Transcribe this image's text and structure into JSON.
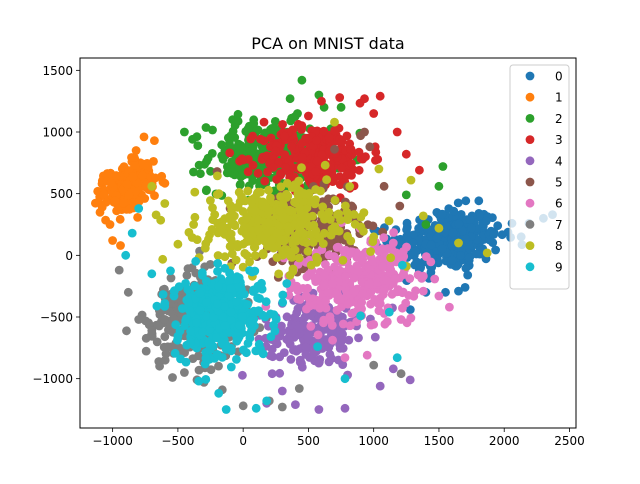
{
  "chart_data": {
    "type": "scatter",
    "title": "PCA on MNIST data",
    "xlabel": "",
    "ylabel": "",
    "xlim": [
      -1250,
      2550
    ],
    "ylim": [
      -1400,
      1600
    ],
    "xticks": [
      -1000,
      -500,
      0,
      500,
      1000,
      1500,
      2000,
      2500
    ],
    "yticks": [
      -1000,
      -500,
      0,
      500,
      1000,
      1500
    ],
    "xtick_labels": [
      "−1000",
      "−500",
      "0",
      "500",
      "1000",
      "1500",
      "2000",
      "2500"
    ],
    "ytick_labels": [
      "−1000",
      "−500",
      "0",
      "500",
      "1000",
      "1500"
    ],
    "grid": false,
    "legend_position": "top-right",
    "series": [
      {
        "name": "0",
        "color": "#1f77b4",
        "center": [
          1550,
          120
        ],
        "spread": [
          380,
          230
        ],
        "n": 320,
        "rotation": 0.1,
        "points": [
          [
            2370,
            330
          ],
          [
            2300,
            300
          ],
          [
            2190,
            260
          ],
          [
            2130,
            150
          ],
          [
            2060,
            260
          ],
          [
            1950,
            240
          ],
          [
            1920,
            170
          ],
          [
            1750,
            220
          ],
          [
            1600,
            80
          ],
          [
            1550,
            -300
          ],
          [
            1650,
            -290
          ],
          [
            1400,
            -300
          ],
          [
            1700,
            -260
          ],
          [
            1250,
            -200
          ],
          [
            1300,
            100
          ],
          [
            1150,
            40
          ],
          [
            1600,
            -40
          ],
          [
            1720,
            -160
          ]
        ]
      },
      {
        "name": "1",
        "color": "#ff7f0e",
        "center": [
          -880,
          560
        ],
        "spread": [
          150,
          200
        ],
        "n": 220,
        "rotation": -0.8,
        "points": [
          [
            -1050,
            430
          ],
          [
            -1080,
            390
          ],
          [
            -1000,
            120
          ],
          [
            -940,
            80
          ],
          [
            -760,
            960
          ],
          [
            -680,
            930
          ],
          [
            -1020,
            250
          ],
          [
            -820,
            850
          ]
        ]
      },
      {
        "name": "2",
        "color": "#2ca02c",
        "center": [
          200,
          800
        ],
        "spread": [
          420,
          260
        ],
        "n": 300,
        "rotation": 0.0,
        "points": [
          [
            450,
            1420
          ],
          [
            580,
            1300
          ],
          [
            620,
            1200
          ],
          [
            -80,
            1100
          ],
          [
            -450,
            1000
          ],
          [
            1530,
            720
          ],
          [
            1500,
            560
          ],
          [
            1250,
            490
          ],
          [
            360,
            1270
          ],
          [
            -140,
            820
          ],
          [
            750,
            1200
          ],
          [
            1400,
            250
          ]
        ]
      },
      {
        "name": "3",
        "color": "#d62728",
        "center": [
          550,
          800
        ],
        "spread": [
          380,
          230
        ],
        "n": 300,
        "rotation": 0.0,
        "points": [
          [
            1050,
            1290
          ],
          [
            930,
            1270
          ],
          [
            740,
            1280
          ],
          [
            600,
            1250
          ],
          [
            1250,
            820
          ],
          [
            1350,
            690
          ],
          [
            1180,
            1000
          ],
          [
            160,
            1080
          ],
          [
            1000,
            1150
          ],
          [
            500,
            1130
          ]
        ]
      },
      {
        "name": "4",
        "color": "#9467bd",
        "center": [
          550,
          -600
        ],
        "spread": [
          350,
          220
        ],
        "n": 220,
        "rotation": 0.2,
        "points": [
          [
            780,
            -1240
          ],
          [
            580,
            -1250
          ],
          [
            400,
            -1210
          ],
          [
            1050,
            -1060
          ],
          [
            800,
            -970
          ],
          [
            1280,
            -1010
          ],
          [
            1150,
            -920
          ],
          [
            300,
            -1100
          ],
          [
            180,
            -1200
          ]
        ]
      },
      {
        "name": "5",
        "color": "#8c564b",
        "center": [
          500,
          200
        ],
        "spread": [
          360,
          260
        ],
        "n": 240,
        "rotation": 0.0,
        "points": [
          [
            900,
            970
          ],
          [
            930,
            1000
          ],
          [
            970,
            880
          ],
          [
            700,
            860
          ],
          [
            1080,
            560
          ],
          [
            1200,
            400
          ],
          [
            -200,
            680
          ],
          [
            -100,
            380
          ],
          [
            300,
            500
          ]
        ]
      },
      {
        "name": "6",
        "color": "#e377c2",
        "center": [
          850,
          -200
        ],
        "spread": [
          430,
          300
        ],
        "n": 300,
        "rotation": 0.25,
        "points": [
          [
            1580,
            -420
          ],
          [
            1500,
            -330
          ],
          [
            1380,
            -290
          ],
          [
            1210,
            -520
          ],
          [
            1000,
            -560
          ],
          [
            950,
            -810
          ],
          [
            780,
            -830
          ],
          [
            1150,
            100
          ],
          [
            650,
            -300
          ]
        ]
      },
      {
        "name": "7",
        "color": "#7f7f7f",
        "center": [
          -350,
          -500
        ],
        "spread": [
          310,
          330
        ],
        "n": 280,
        "rotation": -0.4,
        "points": [
          [
            -950,
            -120
          ],
          [
            -880,
            -300
          ],
          [
            -800,
            -520
          ],
          [
            -700,
            -610
          ],
          [
            -600,
            -660
          ],
          [
            -450,
            -950
          ],
          [
            -300,
            -1030
          ],
          [
            -160,
            -1090
          ],
          [
            0,
            -1220
          ],
          [
            200,
            -1180
          ],
          [
            300,
            -1230
          ],
          [
            1210,
            -960
          ],
          [
            1000,
            -890
          ],
          [
            430,
            -1080
          ]
        ]
      },
      {
        "name": "8",
        "color": "#bcbd22",
        "center": [
          250,
          250
        ],
        "spread": [
          520,
          300
        ],
        "n": 360,
        "rotation": 0.0,
        "points": [
          [
            -700,
            560
          ],
          [
            -600,
            420
          ],
          [
            -500,
            90
          ],
          [
            -380,
            250
          ],
          [
            0,
            90
          ],
          [
            400,
            130
          ],
          [
            800,
            300
          ],
          [
            1000,
            150
          ],
          [
            1130,
            -20
          ],
          [
            1250,
            -90
          ],
          [
            1650,
            100
          ],
          [
            1500,
            220
          ],
          [
            1870,
            20
          ],
          [
            1380,
            320
          ],
          [
            700,
            1080
          ],
          [
            1040,
            700
          ]
        ]
      },
      {
        "name": "9",
        "color": "#17becf",
        "center": [
          -180,
          -480
        ],
        "spread": [
          330,
          300
        ],
        "n": 380,
        "rotation": -0.5,
        "points": [
          [
            -800,
            380
          ],
          [
            -850,
            180
          ],
          [
            -900,
            0
          ],
          [
            -700,
            -150
          ],
          [
            -600,
            -390
          ],
          [
            -480,
            -840
          ],
          [
            -340,
            -1020
          ],
          [
            -130,
            -1250
          ],
          [
            100,
            -1240
          ],
          [
            180,
            -1180
          ],
          [
            570,
            -740
          ],
          [
            780,
            -1000
          ],
          [
            1180,
            -830
          ],
          [
            1120,
            -460
          ],
          [
            900,
            -490
          ],
          [
            1220,
            -80
          ]
        ]
      }
    ]
  }
}
